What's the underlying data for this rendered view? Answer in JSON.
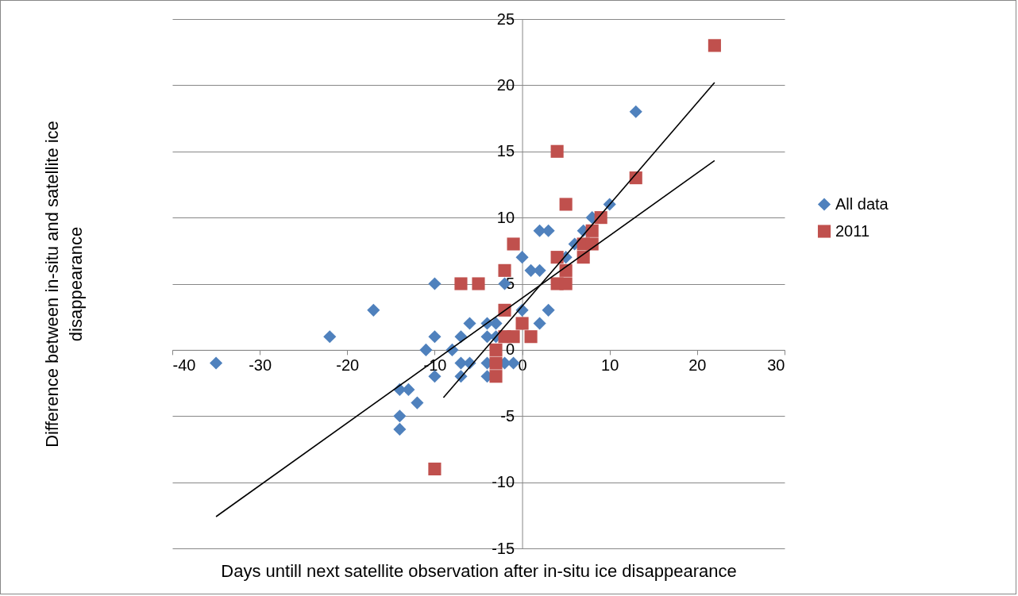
{
  "chart_data": {
    "type": "scatter",
    "xlabel": "Days untill next satellite observation after in-situ ice disappearance",
    "ylabel": "Difference between in-situ and satellite ice disappearance",
    "xlim": [
      -40,
      30
    ],
    "ylim": [
      -15,
      25
    ],
    "xticks": [
      -40,
      -30,
      -20,
      -10,
      0,
      10,
      20,
      30
    ],
    "yticks": [
      -15,
      -10,
      -5,
      0,
      5,
      10,
      15,
      20,
      25
    ],
    "grid": "y",
    "legend": "right",
    "series": [
      {
        "name": "All data",
        "color": "#4f81bd",
        "marker": "diamond",
        "x": [
          -35,
          -22,
          -17,
          -14,
          -13,
          -14,
          -14,
          -12,
          -11,
          -10,
          -10,
          -10,
          -8,
          -7,
          -7,
          -7,
          -6,
          -6,
          -4,
          -4,
          -4,
          -4,
          -3,
          -3,
          -2,
          -2,
          -1,
          0,
          0,
          1,
          2,
          2,
          3,
          2,
          3,
          5,
          6,
          7,
          8,
          10,
          13
        ],
        "values": [
          -1,
          1,
          3,
          -3,
          -3,
          -5,
          -6,
          -4,
          0,
          1,
          5,
          -2,
          0,
          1,
          -1,
          -2,
          2,
          -1,
          2,
          1,
          -1,
          -2,
          2,
          1,
          5,
          -1,
          -1,
          7,
          3,
          6,
          6,
          9,
          9,
          2,
          3,
          7,
          8,
          9,
          10,
          11,
          18
        ]
      },
      {
        "name": "2011",
        "color": "#c0504d",
        "marker": "square",
        "x": [
          -10,
          -7,
          -5,
          -2,
          -2,
          -1,
          -3,
          -3,
          -3,
          -2,
          0,
          1,
          -1,
          4,
          5,
          4,
          4,
          5,
          5,
          7,
          7,
          8,
          8,
          9,
          13,
          22
        ],
        "values": [
          -9,
          5,
          5,
          6,
          3,
          8,
          0,
          -1,
          -2,
          1,
          2,
          1,
          1,
          15,
          11,
          7,
          5,
          5,
          6,
          7,
          8,
          8,
          9,
          10,
          13,
          23
        ]
      },
      {
        "type": "line",
        "color": "#000000",
        "x": [
          -35,
          22
        ],
        "values": [
          -12.6,
          14.3
        ]
      },
      {
        "type": "line",
        "color": "#000000",
        "x": [
          -9,
          22
        ],
        "values": [
          -3.6,
          20.2
        ]
      }
    ]
  }
}
